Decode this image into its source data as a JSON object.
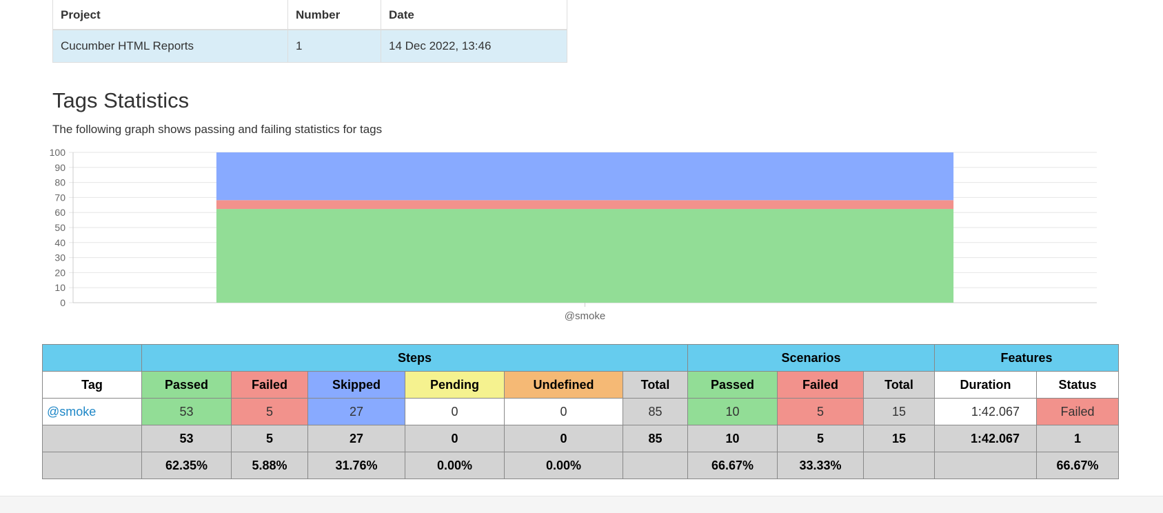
{
  "report": {
    "headers": {
      "project": "Project",
      "number": "Number",
      "date": "Date"
    },
    "row": {
      "project": "Cucumber HTML Reports",
      "number": "1",
      "date": "14 Dec 2022, 13:46"
    }
  },
  "section": {
    "title": "Tags Statistics",
    "description": "The following graph shows passing and failing statistics for tags"
  },
  "chart_data": {
    "type": "bar",
    "stacked": true,
    "categories": [
      "@smoke"
    ],
    "series": [
      {
        "values": [
          62.35
        ],
        "color": "#92dd96"
      },
      {
        "values": [
          5.88
        ],
        "color": "#f2928c"
      },
      {
        "values": [
          31.76
        ],
        "color": "#88aaff"
      }
    ],
    "ylim": [
      0,
      100
    ],
    "yticks": [
      "0",
      "10",
      "20",
      "30",
      "40",
      "50",
      "60",
      "70",
      "80",
      "90",
      "100"
    ],
    "grid": true
  },
  "stats": {
    "group_headers": {
      "steps": "Steps",
      "scenarios": "Scenarios",
      "features": "Features"
    },
    "columns": {
      "tag": "Tag",
      "steps_passed": "Passed",
      "steps_failed": "Failed",
      "steps_skipped": "Skipped",
      "steps_pending": "Pending",
      "steps_undefined": "Undefined",
      "steps_total": "Total",
      "sc_passed": "Passed",
      "sc_failed": "Failed",
      "sc_total": "Total",
      "duration": "Duration",
      "status": "Status"
    },
    "row": {
      "tag": "@smoke",
      "steps_passed": "53",
      "steps_failed": "5",
      "steps_skipped": "27",
      "steps_pending": "0",
      "steps_undefined": "0",
      "steps_total": "85",
      "sc_passed": "10",
      "sc_failed": "5",
      "sc_total": "15",
      "duration": "1:42.067",
      "status": "Failed"
    },
    "totals": {
      "steps_passed": "53",
      "steps_failed": "5",
      "steps_skipped": "27",
      "steps_pending": "0",
      "steps_undefined": "0",
      "steps_total": "85",
      "sc_passed": "10",
      "sc_failed": "5",
      "sc_total": "15",
      "duration": "1:42.067",
      "status": "1"
    },
    "percentages": {
      "steps_passed": "62.35%",
      "steps_failed": "5.88%",
      "steps_skipped": "31.76%",
      "steps_pending": "0.00%",
      "steps_undefined": "0.00%",
      "sc_passed": "66.67%",
      "sc_failed": "33.33%",
      "status": "66.67%"
    }
  },
  "colors": {
    "passed": "#92dd96",
    "failed": "#f2928c",
    "skipped": "#88aaff",
    "pending": "#f5f28f",
    "undefined": "#f5b975",
    "header": "#66ccee",
    "total": "#d3d3d3",
    "link": "#1e87c7"
  }
}
